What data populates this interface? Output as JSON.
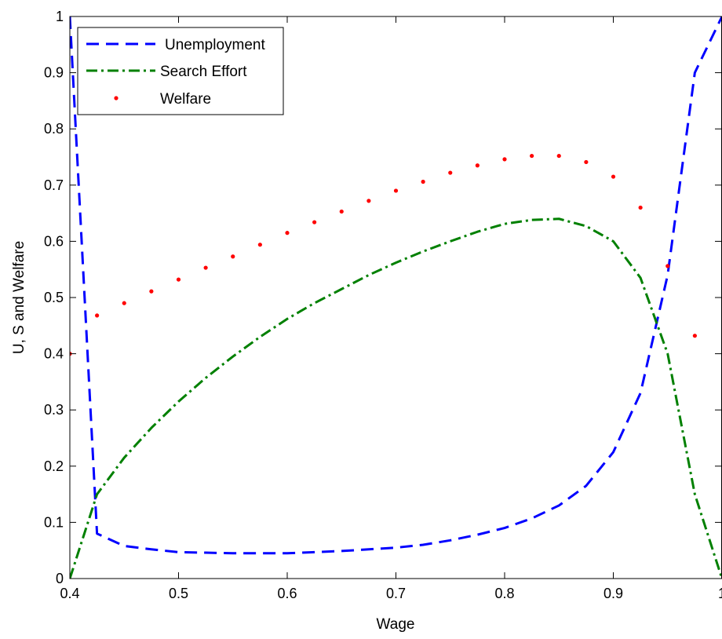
{
  "chart_data": {
    "type": "line",
    "xlabel": "Wage",
    "ylabel": "U, S and Welfare",
    "xlim": [
      0.4,
      1.0
    ],
    "ylim": [
      0,
      1
    ],
    "grid": false,
    "legend_placement": "top-left",
    "x_ticks": [
      "0.4",
      "0.5",
      "0.6",
      "0.7",
      "0.8",
      "0.9",
      "1"
    ],
    "y_ticks": [
      "0",
      "0.1",
      "0.2",
      "0.3",
      "0.4",
      "0.5",
      "0.6",
      "0.7",
      "0.8",
      "0.9",
      "1"
    ],
    "series": [
      {
        "name": "Unemployment",
        "style": "dashed",
        "color": "#0000ff",
        "x": [
          0.4,
          0.425,
          0.45,
          0.475,
          0.5,
          0.525,
          0.55,
          0.575,
          0.6,
          0.625,
          0.65,
          0.675,
          0.7,
          0.725,
          0.75,
          0.775,
          0.8,
          0.825,
          0.85,
          0.875,
          0.9,
          0.925,
          0.95,
          0.975,
          1.0
        ],
        "values": [
          1.0,
          0.08,
          0.058,
          0.052,
          0.047,
          0.046,
          0.045,
          0.045,
          0.045,
          0.047,
          0.049,
          0.052,
          0.055,
          0.06,
          0.068,
          0.078,
          0.09,
          0.107,
          0.13,
          0.165,
          0.225,
          0.33,
          0.54,
          0.9,
          1.0
        ]
      },
      {
        "name": "Search Effort",
        "style": "dash-dot",
        "color": "#008000",
        "x": [
          0.4,
          0.425,
          0.45,
          0.475,
          0.5,
          0.525,
          0.55,
          0.575,
          0.6,
          0.625,
          0.65,
          0.675,
          0.7,
          0.725,
          0.75,
          0.775,
          0.8,
          0.825,
          0.85,
          0.875,
          0.9,
          0.925,
          0.95,
          0.975,
          1.0
        ],
        "values": [
          0.0,
          0.15,
          0.215,
          0.268,
          0.315,
          0.357,
          0.395,
          0.43,
          0.462,
          0.49,
          0.515,
          0.54,
          0.562,
          0.582,
          0.6,
          0.617,
          0.631,
          0.638,
          0.64,
          0.627,
          0.6,
          0.535,
          0.4,
          0.15,
          0.0
        ]
      },
      {
        "name": "Welfare",
        "style": "dotted",
        "color": "#ff0000",
        "x": [
          0.4,
          0.425,
          0.45,
          0.475,
          0.5,
          0.525,
          0.55,
          0.575,
          0.6,
          0.625,
          0.65,
          0.675,
          0.7,
          0.725,
          0.75,
          0.775,
          0.8,
          0.825,
          0.85,
          0.875,
          0.9,
          0.925,
          0.95,
          0.975
        ],
        "values": [
          0.4,
          0.468,
          0.49,
          0.511,
          0.532,
          0.553,
          0.573,
          0.594,
          0.615,
          0.634,
          0.653,
          0.672,
          0.69,
          0.706,
          0.722,
          0.735,
          0.746,
          0.752,
          0.752,
          0.741,
          0.715,
          0.66,
          0.556,
          0.432
        ]
      }
    ]
  }
}
